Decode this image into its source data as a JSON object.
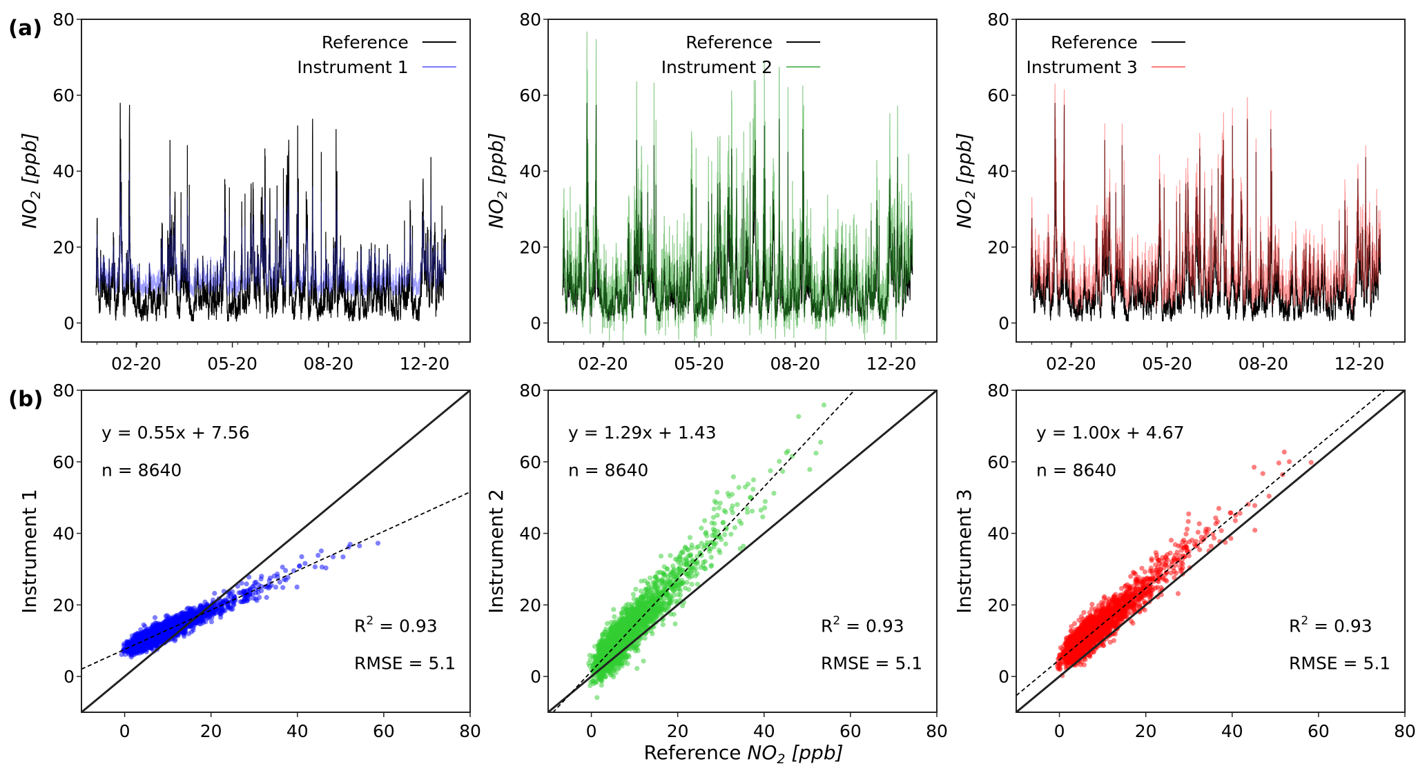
{
  "figure": {
    "panel_tags": [
      "(a)",
      "(b)"
    ],
    "x_label_bottom": {
      "prefix": "Reference ",
      "main": "NO",
      "sub": "2",
      "unit": " [ppb]"
    }
  },
  "chart_data": [
    {
      "type": "line",
      "row": "a",
      "ylabel": {
        "main": "NO",
        "sub": "2",
        "unit": " [ppb]"
      },
      "ylim": [
        -5,
        80
      ],
      "yticks": [
        0,
        20,
        40,
        60,
        80
      ],
      "xticks": [
        "02-20",
        "05-20",
        "08-20",
        "12-20"
      ],
      "legend_position": "top-right",
      "series": [
        {
          "name": "Reference",
          "color": "#000000"
        },
        {
          "name": "Instrument 1",
          "color": "#4040ff",
          "slope": 0.55,
          "intercept": 7.56
        }
      ]
    },
    {
      "type": "line",
      "row": "a",
      "ylabel": {
        "main": "NO",
        "sub": "2",
        "unit": " [ppb]"
      },
      "ylim": [
        -5,
        80
      ],
      "yticks": [
        0,
        20,
        40,
        60,
        80
      ],
      "xticks": [
        "02-20",
        "05-20",
        "08-20",
        "12-20"
      ],
      "legend_position": "top-center",
      "series": [
        {
          "name": "Reference",
          "color": "#000000"
        },
        {
          "name": "Instrument 2",
          "color": "#2ca02c",
          "slope": 1.29,
          "intercept": 1.43
        }
      ]
    },
    {
      "type": "line",
      "row": "a",
      "ylabel": {
        "main": "NO",
        "sub": "2",
        "unit": " [ppb]"
      },
      "ylim": [
        -5,
        80
      ],
      "yticks": [
        0,
        20,
        40,
        60,
        80
      ],
      "xticks": [
        "02-20",
        "05-20",
        "08-20",
        "12-20"
      ],
      "legend_position": "top-left",
      "series": [
        {
          "name": "Reference",
          "color": "#000000"
        },
        {
          "name": "Instrument 3",
          "color": "#ff4040",
          "slope": 1.0,
          "intercept": 4.67
        }
      ]
    },
    {
      "type": "scatter",
      "row": "b",
      "ylabel": "Instrument 1",
      "xlim": [
        -10,
        80
      ],
      "ylim": [
        -10,
        80
      ],
      "ticks": [
        0,
        20,
        40,
        60,
        80
      ],
      "color": "#0000ff",
      "fit": {
        "slope": 0.55,
        "intercept": 7.56
      },
      "equation": "y = 0.55x + 7.56",
      "n": "n = 8640",
      "r2": {
        "label": "R",
        "sup": "2",
        "value": " = 0.93"
      },
      "rmse": "RMSE = 5.1"
    },
    {
      "type": "scatter",
      "row": "b",
      "ylabel": "Instrument 2",
      "xlim": [
        -10,
        80
      ],
      "ylim": [
        -10,
        80
      ],
      "ticks": [
        0,
        20,
        40,
        60,
        80
      ],
      "color": "#32cd32",
      "fit": {
        "slope": 1.29,
        "intercept": 1.43
      },
      "equation": "y = 1.29x + 1.43",
      "n": "n = 8640",
      "r2": {
        "label": "R",
        "sup": "2",
        "value": " = 0.93"
      },
      "rmse": "RMSE = 5.1"
    },
    {
      "type": "scatter",
      "row": "b",
      "ylabel": "Instrument 3",
      "xlim": [
        -10,
        80
      ],
      "ylim": [
        -10,
        80
      ],
      "ticks": [
        0,
        20,
        40,
        60,
        80
      ],
      "color": "#ff0000",
      "fit": {
        "slope": 1.0,
        "intercept": 4.67
      },
      "equation": "y = 1.00x + 4.67",
      "n": "n = 8640",
      "r2": {
        "label": "R",
        "sup": "2",
        "value": " = 0.93"
      },
      "rmse": "RMSE = 5.1"
    }
  ]
}
